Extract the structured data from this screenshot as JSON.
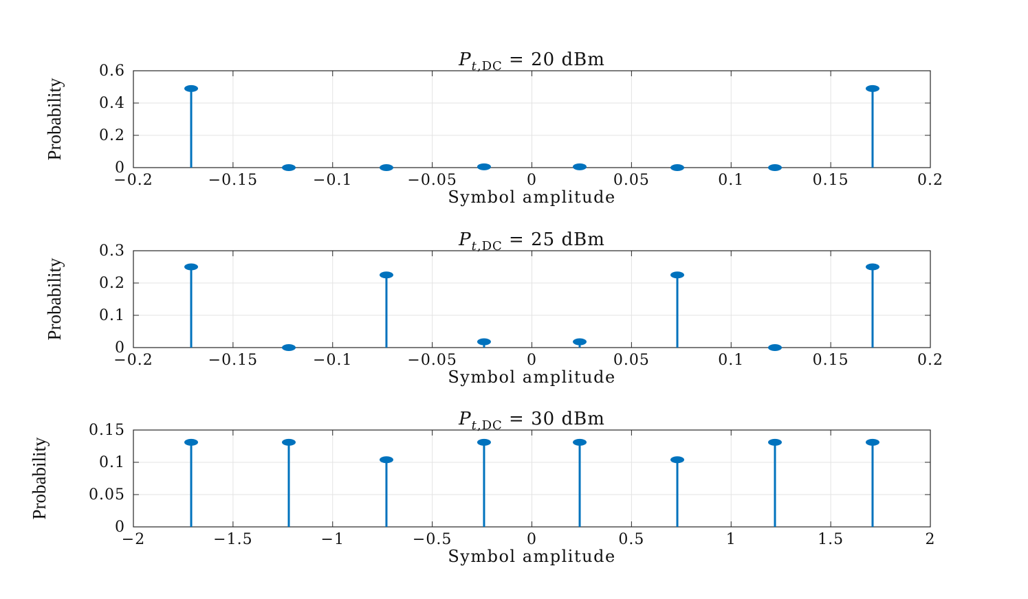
{
  "chart_data": [
    {
      "type": "stem",
      "title": {
        "variable": "P",
        "subscript": "t,DC",
        "value": "= 20 dBm"
      },
      "xlabel": "Symbol amplitude",
      "ylabel": "Probability",
      "xlim": [
        -0.2,
        0.2
      ],
      "ylim": [
        0,
        0.6
      ],
      "xticks": [
        -0.2,
        -0.15,
        -0.1,
        -0.05,
        0,
        0.05,
        0.1,
        0.15,
        0.2
      ],
      "xtick_labels": [
        "−0.2",
        "−0.15",
        "−0.1",
        "−0.05",
        "0",
        "0.05",
        "0.1",
        "0.15",
        "0.2"
      ],
      "yticks": [
        0,
        0.2,
        0.4,
        0.6
      ],
      "ytick_labels": [
        "0",
        "0.2",
        "0.4",
        "0.6"
      ],
      "grid": true,
      "x": [
        -0.171,
        -0.122,
        -0.073,
        -0.024,
        0.024,
        0.073,
        0.122,
        0.171
      ],
      "y": [
        0.49,
        0.0,
        0.0,
        0.005,
        0.005,
        0.0,
        0.0,
        0.49
      ],
      "color": "#0072bd"
    },
    {
      "type": "stem",
      "title": {
        "variable": "P",
        "subscript": "t,DC",
        "value": "= 25 dBm"
      },
      "xlabel": "Symbol amplitude",
      "ylabel": "Probability",
      "xlim": [
        -0.2,
        0.2
      ],
      "ylim": [
        0,
        0.3
      ],
      "xticks": [
        -0.2,
        -0.15,
        -0.1,
        -0.05,
        0,
        0.05,
        0.1,
        0.15,
        0.2
      ],
      "xtick_labels": [
        "−0.2",
        "−0.15",
        "−0.1",
        "−0.05",
        "0",
        "0.05",
        "0.1",
        "0.15",
        "0.2"
      ],
      "yticks": [
        0,
        0.1,
        0.2,
        0.3
      ],
      "ytick_labels": [
        "0",
        "0.1",
        "0.2",
        "0.3"
      ],
      "grid": true,
      "x": [
        -0.171,
        -0.122,
        -0.073,
        -0.024,
        0.024,
        0.073,
        0.122,
        0.171
      ],
      "y": [
        0.25,
        0.0,
        0.225,
        0.018,
        0.018,
        0.225,
        0.0,
        0.25
      ],
      "color": "#0072bd"
    },
    {
      "type": "stem",
      "title": {
        "variable": "P",
        "subscript": "t,DC",
        "value": "= 30 dBm"
      },
      "xlabel": "Symbol amplitude",
      "ylabel": "Probability",
      "xlim": [
        -2,
        2
      ],
      "ylim": [
        0,
        0.15
      ],
      "xticks": [
        -2,
        -1.5,
        -1,
        -0.5,
        0,
        0.5,
        1,
        1.5,
        2
      ],
      "xtick_labels": [
        "−2",
        "−1.5",
        "−1",
        "−0.5",
        "0",
        "0.5",
        "1",
        "1.5",
        "2"
      ],
      "yticks": [
        0,
        0.05,
        0.1,
        0.15
      ],
      "ytick_labels": [
        "0",
        "0.05",
        "0.1",
        "0.15"
      ],
      "grid": true,
      "x": [
        -1.71,
        -1.22,
        -0.73,
        -0.24,
        0.24,
        0.73,
        1.22,
        1.71
      ],
      "y": [
        0.131,
        0.131,
        0.104,
        0.131,
        0.131,
        0.104,
        0.131,
        0.131
      ],
      "color": "#0072bd"
    }
  ]
}
